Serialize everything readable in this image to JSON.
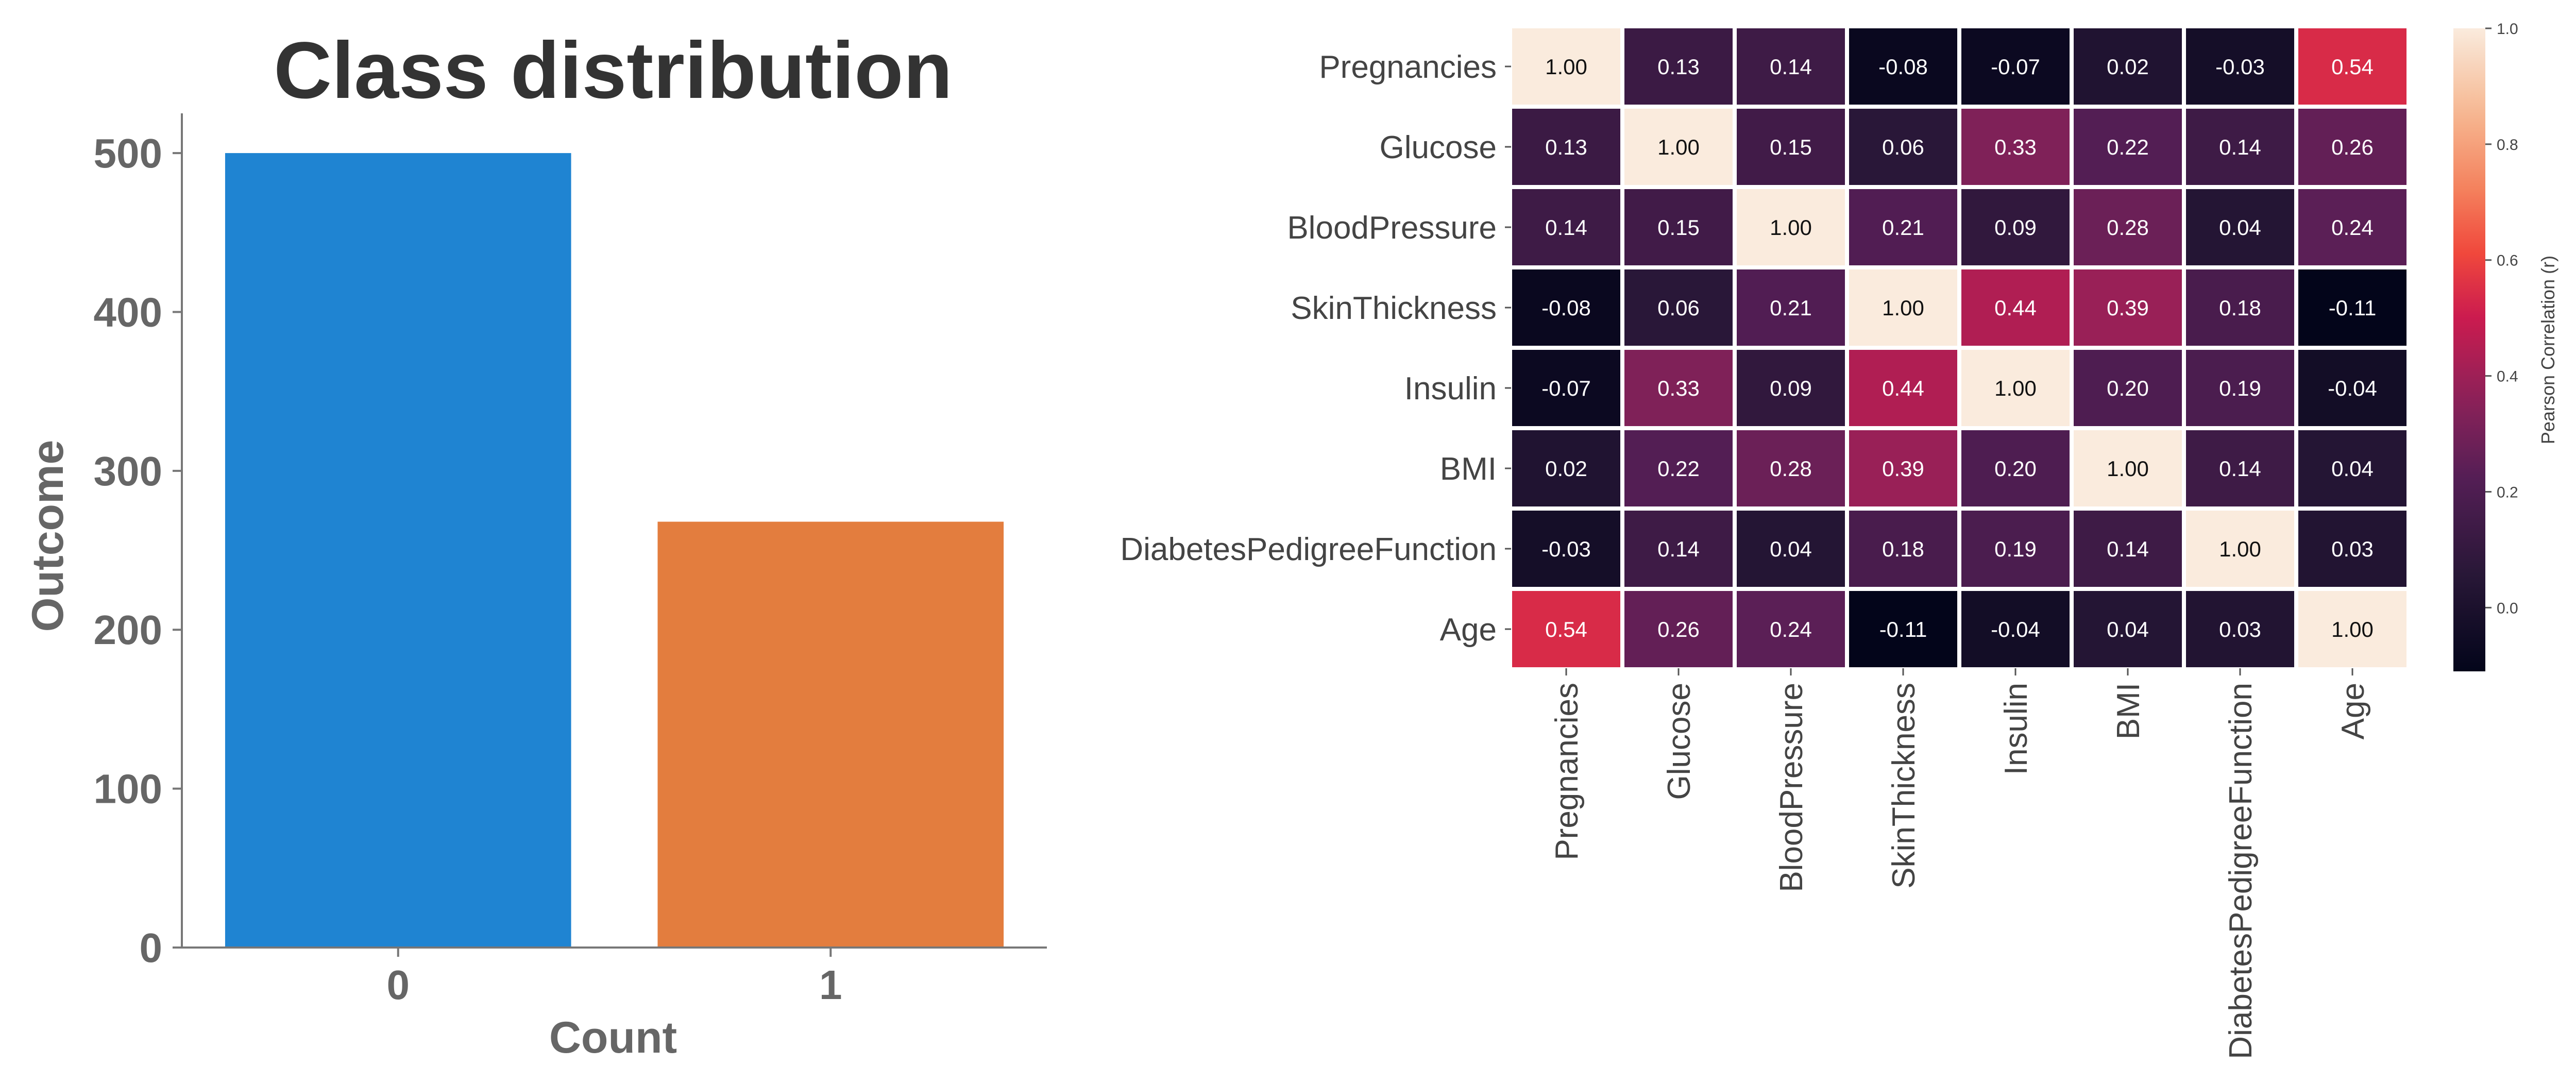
{
  "chart_data": [
    {
      "type": "bar",
      "title": "Class distribution",
      "xlabel": "Count",
      "ylabel": "Outcome",
      "categories": [
        "0",
        "1"
      ],
      "values": [
        500,
        268
      ],
      "ylim": [
        0,
        525
      ],
      "yticks": [
        0,
        100,
        200,
        300,
        400,
        500
      ],
      "colors": [
        "#1f84d2",
        "#e37d3e"
      ],
      "grid": false
    },
    {
      "type": "heatmap",
      "title": "",
      "xlabel": "",
      "ylabel": "",
      "x": [
        "Pregnancies",
        "Glucose",
        "BloodPressure",
        "SkinThickness",
        "Insulin",
        "BMI",
        "DiabetesPedigreeFunction",
        "Age"
      ],
      "y": [
        "Pregnancies",
        "Glucose",
        "BloodPressure",
        "SkinThickness",
        "Insulin",
        "BMI",
        "DiabetesPedigreeFunction",
        "Age"
      ],
      "values": [
        [
          1.0,
          0.13,
          0.14,
          -0.08,
          -0.07,
          0.02,
          -0.03,
          0.54
        ],
        [
          0.13,
          1.0,
          0.15,
          0.06,
          0.33,
          0.22,
          0.14,
          0.26
        ],
        [
          0.14,
          0.15,
          1.0,
          0.21,
          0.09,
          0.28,
          0.04,
          0.24
        ],
        [
          -0.08,
          0.06,
          0.21,
          1.0,
          0.44,
          0.39,
          0.18,
          -0.11
        ],
        [
          -0.07,
          0.33,
          0.09,
          0.44,
          1.0,
          0.2,
          0.19,
          -0.04
        ],
        [
          0.02,
          0.22,
          0.28,
          0.39,
          0.2,
          1.0,
          0.14,
          0.04
        ],
        [
          -0.03,
          0.14,
          0.04,
          0.18,
          0.19,
          0.14,
          1.0,
          0.03
        ],
        [
          0.54,
          0.26,
          0.24,
          -0.11,
          -0.04,
          0.04,
          0.03,
          1.0
        ]
      ],
      "value_labels": [
        [
          "1.00",
          "0.13",
          "0.14",
          "-0.08",
          "-0.07",
          "0.02",
          "-0.03",
          "0.54"
        ],
        [
          "0.13",
          "1.00",
          "0.15",
          "0.06",
          "0.33",
          "0.22",
          "0.14",
          "0.26"
        ],
        [
          "0.14",
          "0.15",
          "1.00",
          "0.21",
          "0.09",
          "0.28",
          "0.04",
          "0.24"
        ],
        [
          "-0.08",
          "0.06",
          "0.21",
          "1.00",
          "0.44",
          "0.39",
          "0.18",
          "-0.11"
        ],
        [
          "-0.07",
          "0.33",
          "0.09",
          "0.44",
          "1.00",
          "0.20",
          "0.19",
          "-0.04"
        ],
        [
          "0.02",
          "0.22",
          "0.28",
          "0.39",
          "0.20",
          "1.00",
          "0.14",
          "0.04"
        ],
        [
          "-0.03",
          "0.14",
          "0.04",
          "0.18",
          "0.19",
          "0.14",
          "1.00",
          "0.03"
        ],
        [
          "0.54",
          "0.26",
          "0.24",
          "-0.11",
          "-0.04",
          "0.04",
          "0.03",
          "1.00"
        ]
      ],
      "colormap": "rocket",
      "colorbar": {
        "label": "Pearson Correlation (r)",
        "range": [
          -0.11,
          1.0
        ],
        "ticks": [
          0.0,
          0.2,
          0.4,
          0.6,
          0.8,
          1.0
        ],
        "tick_labels": [
          "0.0",
          "0.2",
          "0.4",
          "0.6",
          "0.8",
          "1.0"
        ]
      }
    }
  ]
}
